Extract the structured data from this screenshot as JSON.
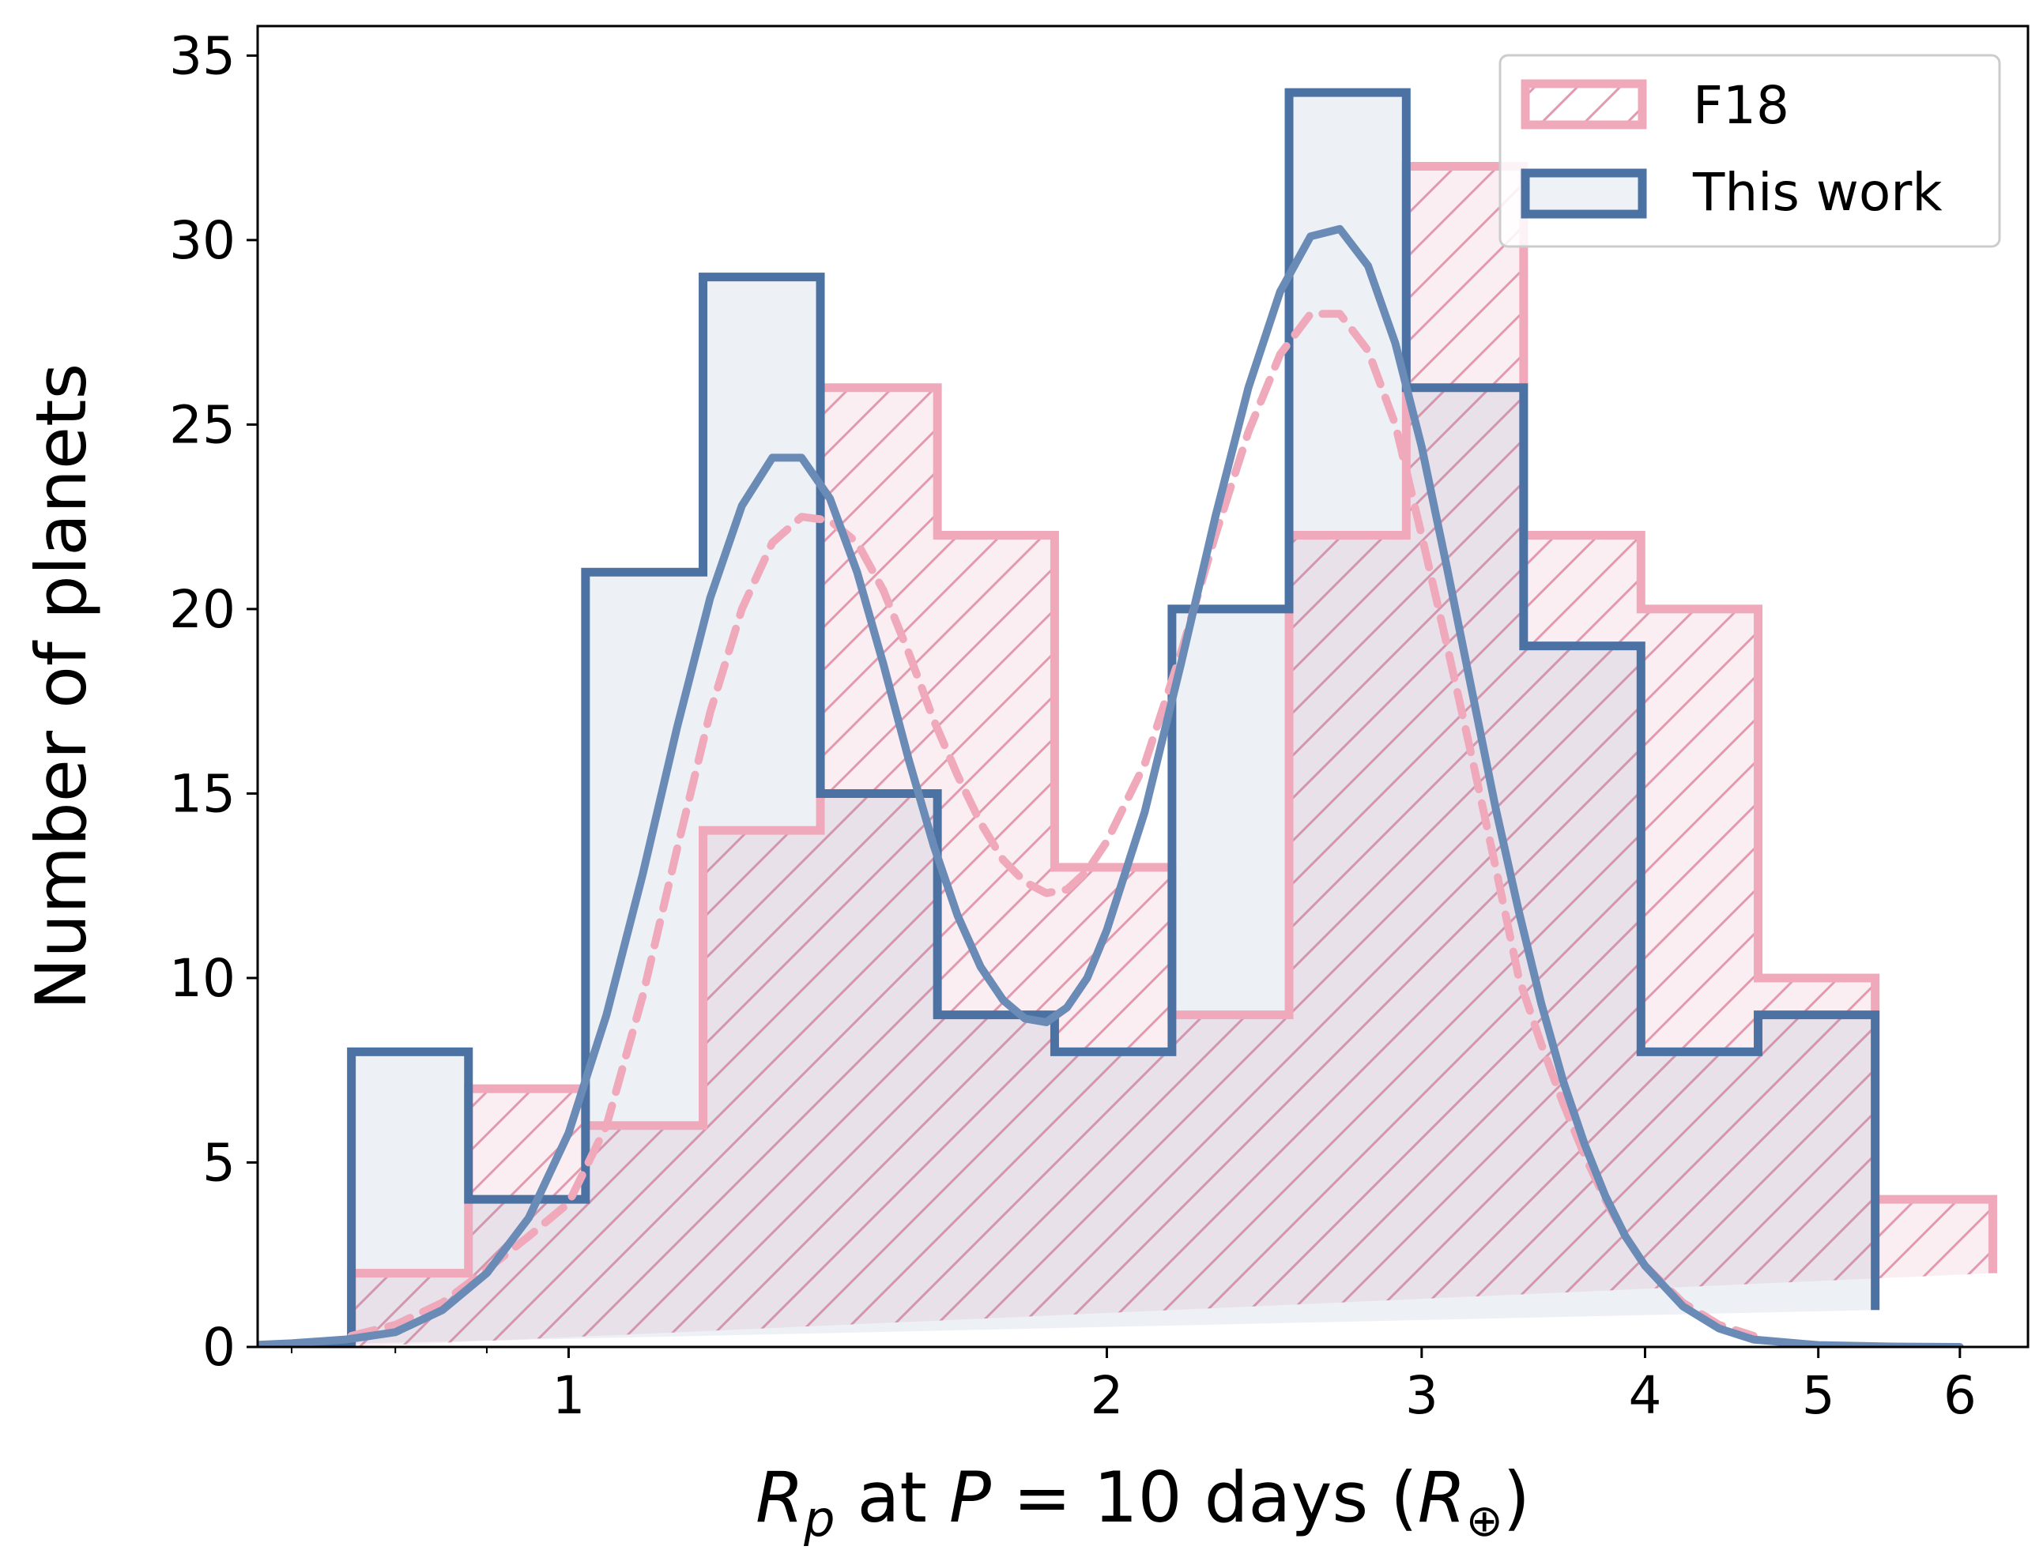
{
  "chart_data": {
    "type": "bar",
    "subtype": "step-histogram-with-kde",
    "title": "",
    "xlabel": "R_p at P = 10 days (R⊕)",
    "xlabel_parts": {
      "var": "R",
      "sub": "p",
      "mid": " at ",
      "pvar": "P",
      "eq": " = 10 days (",
      "rvar": "R",
      "rsub": "⊕",
      "close": ")"
    },
    "ylabel": "Number of planets",
    "xscale": "log",
    "xlim": [
      0.67,
      6.55
    ],
    "ylim": [
      0,
      35.8
    ],
    "xticks": [
      1,
      2,
      3,
      4,
      5,
      6
    ],
    "xtick_labels": [
      "1",
      "2",
      "3",
      "4",
      "5",
      "6"
    ],
    "yticks": [
      0,
      5,
      10,
      15,
      20,
      25,
      30,
      35
    ],
    "ytick_labels": [
      "0",
      "5",
      "10",
      "15",
      "20",
      "25",
      "30",
      "35"
    ],
    "bin_edges": [
      0.756,
      0.879,
      1.022,
      1.189,
      1.383,
      1.608,
      1.87,
      2.175,
      2.529,
      2.941,
      3.421,
      3.979,
      4.627
    ],
    "series": [
      {
        "name": "F18",
        "color": "#f0a9bb",
        "hatch": "/",
        "values": [
          2,
          7,
          6,
          14,
          26,
          22,
          13,
          9,
          22,
          32,
          22,
          20,
          10,
          4,
          2
        ],
        "edges": [
          0.756,
          0.879,
          1.022,
          1.189,
          1.383,
          1.608,
          1.87,
          2.175,
          2.529,
          2.941,
          3.421,
          3.979,
          4.627,
          5.38,
          6.26
        ],
        "kde": {
          "x": [
            0.756,
            0.8,
            0.85,
            0.9,
            0.95,
            1.0,
            1.05,
            1.1,
            1.15,
            1.2,
            1.25,
            1.3,
            1.35,
            1.4,
            1.45,
            1.5,
            1.55,
            1.6,
            1.65,
            1.7,
            1.75,
            1.8,
            1.85,
            1.9,
            1.95,
            2.0,
            2.1,
            2.2,
            2.3,
            2.4,
            2.5,
            2.6,
            2.7,
            2.8,
            2.9,
            3.0,
            3.1,
            3.2,
            3.3,
            3.4,
            3.5,
            3.6,
            3.7,
            3.8,
            3.9,
            4.0,
            4.2,
            4.4,
            4.6
          ],
          "y": [
            0.3,
            0.6,
            1.2,
            2.1,
            3.0,
            3.9,
            6.0,
            9.5,
            13.5,
            17.2,
            20.0,
            21.8,
            22.5,
            22.4,
            21.8,
            20.5,
            18.8,
            17.0,
            15.5,
            14.2,
            13.2,
            12.6,
            12.3,
            12.4,
            12.9,
            13.7,
            15.8,
            18.8,
            22.0,
            24.8,
            26.9,
            28.0,
            28.0,
            27.0,
            25.0,
            22.0,
            19.0,
            16.0,
            13.0,
            10.0,
            8.2,
            6.6,
            5.2,
            4.0,
            3.0,
            2.2,
            1.2,
            0.6,
            0.3
          ]
        }
      },
      {
        "name": "This work",
        "color": "#4c72a4",
        "hatch": "",
        "values": [
          0,
          8,
          4,
          21,
          29,
          15,
          9,
          8,
          20,
          34,
          26,
          19,
          8,
          9,
          1
        ],
        "edges": [
          0.622,
          0.756,
          0.879,
          1.022,
          1.189,
          1.383,
          1.608,
          1.87,
          2.175,
          2.529,
          2.941,
          3.421,
          3.979,
          4.627,
          5.38
        ],
        "kde": {
          "x": [
            0.63,
            0.7,
            0.75,
            0.8,
            0.85,
            0.9,
            0.95,
            1.0,
            1.05,
            1.1,
            1.15,
            1.2,
            1.25,
            1.3,
            1.35,
            1.4,
            1.45,
            1.5,
            1.55,
            1.6,
            1.65,
            1.7,
            1.75,
            1.8,
            1.85,
            1.9,
            1.95,
            2.0,
            2.1,
            2.2,
            2.3,
            2.4,
            2.5,
            2.6,
            2.7,
            2.8,
            2.9,
            3.0,
            3.1,
            3.2,
            3.3,
            3.4,
            3.5,
            3.6,
            3.7,
            3.8,
            3.9,
            4.0,
            4.2,
            4.4,
            4.6,
            5.0,
            5.5,
            6.0
          ],
          "y": [
            0.0,
            0.1,
            0.2,
            0.4,
            1.0,
            2.0,
            3.5,
            5.8,
            9.0,
            12.8,
            16.8,
            20.3,
            22.8,
            24.1,
            24.1,
            23.0,
            21.0,
            18.5,
            15.9,
            13.6,
            11.7,
            10.3,
            9.4,
            8.9,
            8.8,
            9.2,
            10.0,
            11.3,
            14.5,
            18.5,
            22.5,
            26.0,
            28.6,
            30.1,
            30.3,
            29.3,
            27.2,
            24.4,
            21.1,
            17.8,
            14.6,
            11.8,
            9.3,
            7.2,
            5.5,
            4.1,
            3.0,
            2.2,
            1.1,
            0.5,
            0.2,
            0.05,
            0.01,
            0.0
          ]
        }
      }
    ],
    "legend": {
      "position": "top-right",
      "entries": [
        "F18",
        "This work"
      ]
    }
  }
}
